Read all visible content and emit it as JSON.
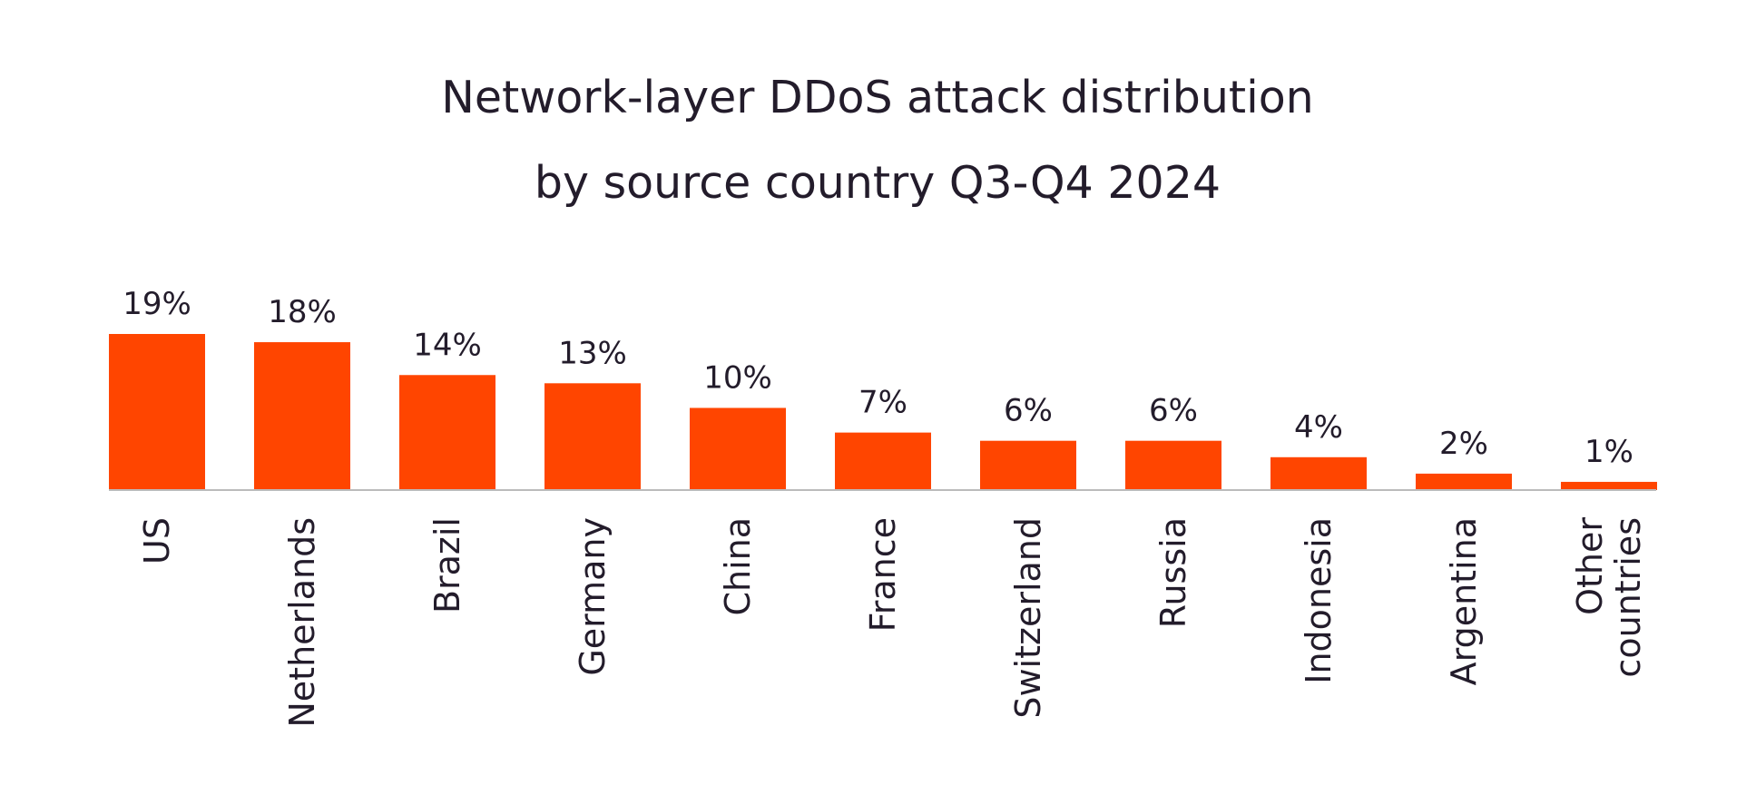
{
  "chart_data": {
    "type": "bar",
    "title": [
      "Network-layer DDoS attack distribution",
      "by source country Q3-Q4 2024"
    ],
    "xlabel": "",
    "ylabel": "",
    "categories": [
      "US",
      "Netherlands",
      "Brazil",
      "Germany",
      "China",
      "France",
      "Switzerland",
      "Russia",
      "Indonesia",
      "Argentina",
      "Other countries"
    ],
    "category_lines": [
      [
        "US"
      ],
      [
        "Netherlands"
      ],
      [
        "Brazil"
      ],
      [
        "Germany"
      ],
      [
        "China"
      ],
      [
        "France"
      ],
      [
        "Switzerland"
      ],
      [
        "Russia"
      ],
      [
        "Indonesia"
      ],
      [
        "Argentina"
      ],
      [
        "Other",
        "countries"
      ]
    ],
    "values": [
      19,
      18,
      14,
      13,
      10,
      7,
      6,
      6,
      4,
      2,
      1
    ],
    "value_labels": [
      "19%",
      "18%",
      "14%",
      "13%",
      "10%",
      "7%",
      "6%",
      "6%",
      "4%",
      "2%",
      "1%"
    ],
    "unit": "%",
    "ylim": [
      0,
      19
    ],
    "grid": false,
    "legend": "none",
    "bar_color": "#ff4500",
    "axis_color": "#bbbbbb",
    "text_color": "#231c2b"
  }
}
